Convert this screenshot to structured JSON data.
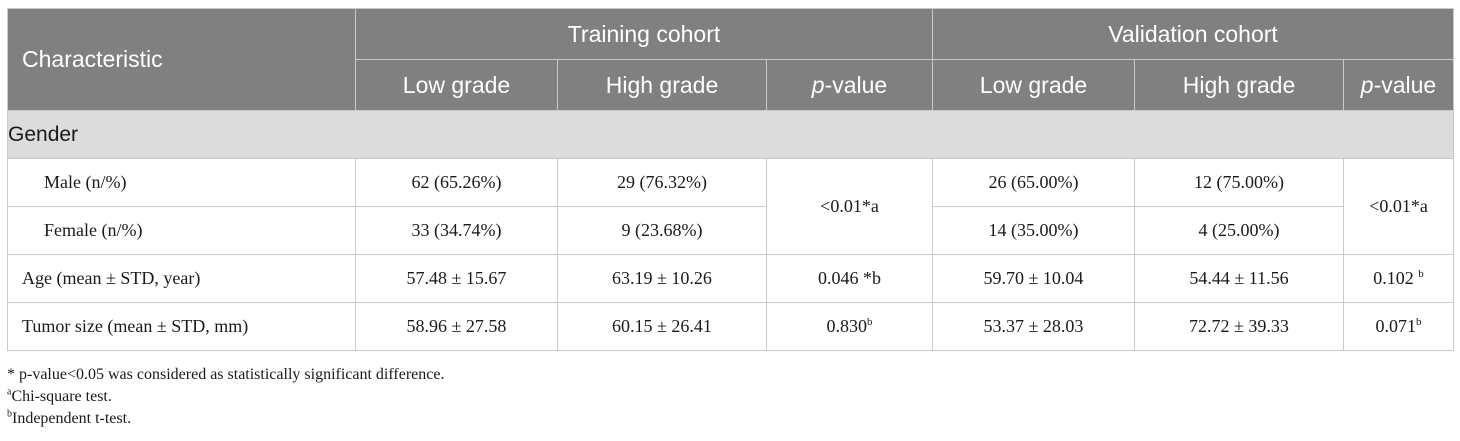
{
  "header": {
    "characteristic": "Characteristic",
    "training_cohort": "Training cohort",
    "validation_cohort": "Validation cohort",
    "low_grade": "Low grade",
    "high_grade": "High grade",
    "p_italic": "p",
    "p_suffix": "-value"
  },
  "section": {
    "gender": "Gender"
  },
  "rows": {
    "male": {
      "label": "Male (n/%)",
      "train_low": "62 (65.26%)",
      "train_high": "29 (76.32%)",
      "val_low": "26 (65.00%)",
      "val_high": "12 (75.00%)"
    },
    "female": {
      "label": "Female (n/%)",
      "train_low": "33 (34.74%)",
      "train_high": "9 (23.68%)",
      "val_low": "14 (35.00%)",
      "val_high": "4 (25.00%)"
    },
    "gender_p": {
      "train": "<0.01*a",
      "val": "<0.01*a"
    },
    "age": {
      "label": "Age (mean ± STD, year)",
      "train_low": "57.48 ± 15.67",
      "train_high": "63.19 ± 10.26",
      "train_p": "0.046 *b",
      "val_low": "59.70 ± 10.04",
      "val_high": "54.44 ± 11.56",
      "val_p": "0.102 ",
      "val_p_sup": "b"
    },
    "tumor": {
      "label": "Tumor size (mean ± STD, mm)",
      "train_low": "58.96 ± 27.58",
      "train_high": "60.15 ± 26.41",
      "train_p": "0.830",
      "train_p_sup": "b",
      "val_low": "53.37 ± 28.03",
      "val_high": "72.72 ± 39.33",
      "val_p": "0.071",
      "val_p_sup": "b"
    }
  },
  "footnotes": {
    "star": "* p-value<0.05 was considered as statistically significant difference.",
    "a_sup": "a",
    "a_text": "Chi-square test.",
    "b_sup": "b",
    "b_text": "Independent t-test."
  }
}
